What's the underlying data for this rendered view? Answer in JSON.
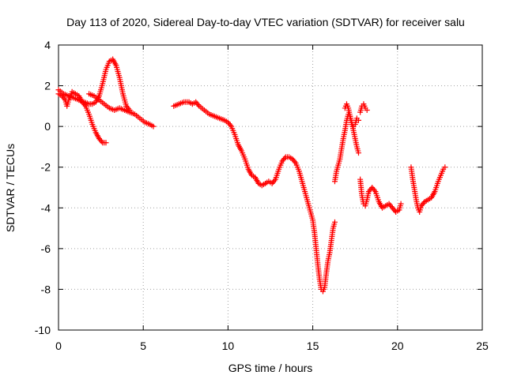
{
  "chart_data": {
    "type": "scatter",
    "title": "Day 113 of 2020, Sidereal Day-to-day VTEC variation (SDTVAR) for receiver salu",
    "xlabel": "GPS time / hours",
    "ylabel": "SDTVAR / TECUs",
    "xlim": [
      0,
      25
    ],
    "ylim": [
      -10,
      4
    ],
    "xticks": [
      "0",
      "5",
      "10",
      "15",
      "20",
      "25"
    ],
    "yticks": [
      "4",
      "2",
      "0",
      "-2",
      "-4",
      "-6",
      "-8",
      "-10"
    ],
    "grid": true,
    "marker": "+",
    "color": "#ff0000",
    "series": [
      {
        "name": "SDTVAR",
        "segments": [
          [
            [
              0.0,
              1.6
            ],
            [
              0.2,
              1.5
            ],
            [
              0.4,
              1.3
            ],
            [
              0.5,
              1.0
            ],
            [
              0.6,
              1.3
            ],
            [
              0.8,
              1.7
            ],
            [
              1.0,
              1.6
            ],
            [
              1.2,
              1.5
            ],
            [
              1.4,
              1.2
            ],
            [
              1.6,
              1.0
            ],
            [
              1.8,
              0.6
            ],
            [
              2.0,
              0.1
            ],
            [
              2.2,
              -0.3
            ],
            [
              2.4,
              -0.6
            ],
            [
              2.6,
              -0.8
            ],
            [
              2.8,
              -0.8
            ]
          ],
          [
            [
              0.0,
              1.8
            ],
            [
              0.3,
              1.6
            ],
            [
              0.6,
              1.5
            ],
            [
              0.9,
              1.4
            ],
            [
              1.2,
              1.3
            ],
            [
              1.5,
              1.2
            ],
            [
              1.8,
              1.1
            ],
            [
              2.0,
              1.1
            ],
            [
              2.2,
              1.2
            ],
            [
              2.4,
              1.5
            ],
            [
              2.6,
              2.1
            ],
            [
              2.8,
              2.8
            ],
            [
              3.0,
              3.2
            ],
            [
              3.2,
              3.3
            ],
            [
              3.4,
              3.0
            ],
            [
              3.6,
              2.4
            ],
            [
              3.8,
              1.6
            ],
            [
              4.0,
              1.0
            ],
            [
              4.2,
              0.8
            ]
          ],
          [
            [
              1.8,
              1.6
            ],
            [
              2.1,
              1.5
            ],
            [
              2.4,
              1.3
            ],
            [
              2.7,
              1.1
            ],
            [
              3.0,
              0.9
            ],
            [
              3.3,
              0.8
            ],
            [
              3.6,
              0.9
            ],
            [
              3.9,
              0.8
            ],
            [
              4.2,
              0.7
            ],
            [
              4.5,
              0.6
            ],
            [
              4.8,
              0.4
            ],
            [
              5.1,
              0.2
            ],
            [
              5.4,
              0.1
            ],
            [
              5.6,
              0.0
            ]
          ],
          [
            [
              6.8,
              1.0
            ],
            [
              7.1,
              1.1
            ],
            [
              7.4,
              1.2
            ],
            [
              7.7,
              1.2
            ],
            [
              7.9,
              1.1
            ],
            [
              8.1,
              1.2
            ],
            [
              8.3,
              1.0
            ],
            [
              8.6,
              0.8
            ],
            [
              8.9,
              0.6
            ],
            [
              9.2,
              0.5
            ],
            [
              9.5,
              0.4
            ],
            [
              9.8,
              0.3
            ],
            [
              10.0,
              0.2
            ],
            [
              10.2,
              0.0
            ],
            [
              10.4,
              -0.4
            ],
            [
              10.6,
              -0.9
            ],
            [
              10.8,
              -1.2
            ],
            [
              11.0,
              -1.6
            ],
            [
              11.2,
              -2.1
            ],
            [
              11.4,
              -2.4
            ],
            [
              11.6,
              -2.5
            ],
            [
              11.8,
              -2.8
            ],
            [
              12.0,
              -2.9
            ],
            [
              12.2,
              -2.8
            ],
            [
              12.4,
              -2.7
            ],
            [
              12.6,
              -2.8
            ],
            [
              12.8,
              -2.6
            ],
            [
              13.0,
              -2.1
            ],
            [
              13.2,
              -1.7
            ],
            [
              13.4,
              -1.5
            ],
            [
              13.6,
              -1.5
            ],
            [
              13.8,
              -1.6
            ],
            [
              14.0,
              -1.8
            ],
            [
              14.2,
              -2.2
            ],
            [
              14.4,
              -2.8
            ],
            [
              14.6,
              -3.4
            ],
            [
              14.8,
              -4.0
            ],
            [
              15.0,
              -4.6
            ],
            [
              15.1,
              -5.2
            ],
            [
              15.2,
              -6.0
            ],
            [
              15.3,
              -6.8
            ],
            [
              15.4,
              -7.5
            ],
            [
              15.5,
              -8.0
            ],
            [
              15.6,
              -8.1
            ],
            [
              15.7,
              -7.9
            ],
            [
              15.8,
              -7.2
            ],
            [
              15.9,
              -6.6
            ],
            [
              16.0,
              -6.2
            ],
            [
              16.1,
              -5.6
            ],
            [
              16.2,
              -5.0
            ],
            [
              16.3,
              -4.7
            ]
          ],
          [
            [
              16.3,
              -2.7
            ],
            [
              16.4,
              -2.2
            ],
            [
              16.5,
              -1.9
            ],
            [
              16.6,
              -1.6
            ],
            [
              16.7,
              -1.1
            ],
            [
              16.8,
              -0.6
            ],
            [
              16.9,
              -0.2
            ],
            [
              17.0,
              0.3
            ],
            [
              17.1,
              0.6
            ],
            [
              17.2,
              0.5
            ],
            [
              17.3,
              0.2
            ],
            [
              17.4,
              -0.2
            ],
            [
              17.5,
              -0.6
            ],
            [
              17.6,
              -1.0
            ],
            [
              17.7,
              -1.3
            ]
          ],
          [
            [
              16.9,
              0.9
            ],
            [
              17.0,
              1.1
            ],
            [
              17.1,
              0.9
            ],
            [
              17.2,
              0.5
            ],
            [
              17.3,
              0.1
            ],
            [
              17.4,
              0.0
            ],
            [
              17.5,
              0.1
            ],
            [
              17.6,
              0.4
            ],
            [
              17.7,
              0.3
            ]
          ],
          [
            [
              17.8,
              0.7
            ],
            [
              17.9,
              1.0
            ],
            [
              18.0,
              1.1
            ],
            [
              18.1,
              0.9
            ],
            [
              18.2,
              0.8
            ]
          ],
          [
            [
              17.8,
              -2.6
            ],
            [
              17.9,
              -3.4
            ],
            [
              18.0,
              -3.8
            ],
            [
              18.1,
              -3.9
            ],
            [
              18.2,
              -3.6
            ],
            [
              18.3,
              -3.2
            ],
            [
              18.5,
              -3.0
            ],
            [
              18.7,
              -3.2
            ],
            [
              18.9,
              -3.7
            ],
            [
              19.1,
              -4.0
            ],
            [
              19.3,
              -3.9
            ],
            [
              19.5,
              -3.8
            ],
            [
              19.7,
              -4.0
            ],
            [
              19.9,
              -4.2
            ],
            [
              20.1,
              -4.1
            ],
            [
              20.2,
              -3.8
            ]
          ],
          [
            [
              20.8,
              -2.0
            ],
            [
              20.9,
              -2.6
            ],
            [
              21.0,
              -3.1
            ],
            [
              21.1,
              -3.6
            ],
            [
              21.2,
              -4.0
            ],
            [
              21.3,
              -4.2
            ],
            [
              21.4,
              -3.9
            ],
            [
              21.6,
              -3.7
            ],
            [
              21.8,
              -3.6
            ],
            [
              22.0,
              -3.5
            ],
            [
              22.2,
              -3.2
            ],
            [
              22.4,
              -2.7
            ],
            [
              22.6,
              -2.3
            ],
            [
              22.7,
              -2.1
            ],
            [
              22.8,
              -2.0
            ]
          ]
        ]
      }
    ]
  }
}
